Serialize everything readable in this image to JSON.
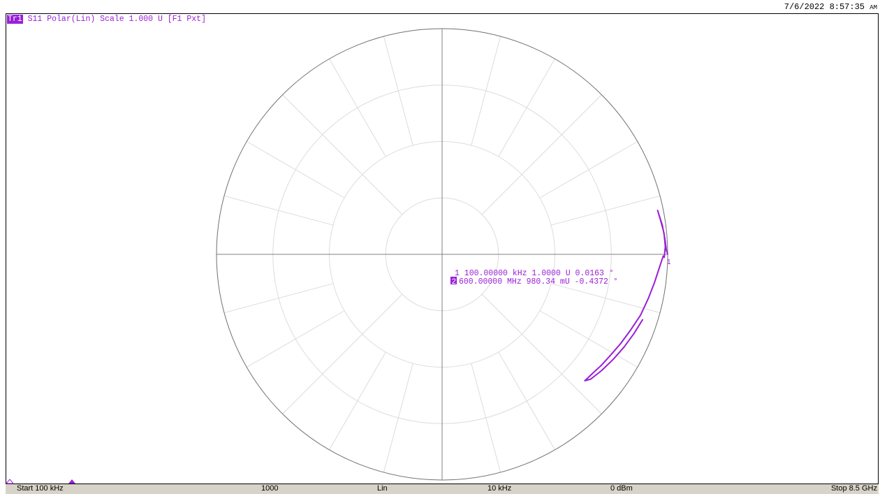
{
  "header": {
    "timestamp": "7/6/2022 8:57:35",
    "ampm": "AM"
  },
  "trace": {
    "badge": "Tr1",
    "label": "S11 Polar(Lin) Scale 1.000 U [F1 Pxt]",
    "color": "#9a1fd6"
  },
  "markers": {
    "m1": {
      "num": "1",
      "freq": "100.00000 kHz",
      "mag": "1.0000 U",
      "phase": "0.0163 °"
    },
    "m2": {
      "num": "2",
      "freq": "600.00000 MHz",
      "mag": "980.34 mU",
      "phase": "-0.4372 °"
    }
  },
  "statusbar": {
    "start": "Start 100 kHz",
    "points": "1000",
    "sweep": "Lin",
    "ifbw": "10 kHz",
    "power": "0 dBm",
    "stop": "Stop 8.5 GHz"
  },
  "chart_data": {
    "type": "polar",
    "scale": 1.0,
    "scale_unit": "U",
    "series": [
      {
        "values_polar": [
          [
            1.0,
            0.0163
          ],
          [
            0.994,
            1.2
          ],
          [
            0.99,
            4.0
          ],
          [
            0.985,
            7.5
          ],
          [
            0.975,
            11.5
          ],
          [
            0.98,
            9.0
          ],
          [
            0.988,
            5.5
          ],
          [
            0.99,
            2.0
          ],
          [
            0.985,
            -0.8
          ],
          [
            0.98034,
            -0.4372
          ],
          [
            0.965,
            -3.5
          ],
          [
            0.95,
            -7.5
          ],
          [
            0.935,
            -12.0
          ],
          [
            0.92,
            -17.0
          ],
          [
            0.9,
            -22.0
          ],
          [
            0.885,
            -26.5
          ],
          [
            0.87,
            -31.0
          ],
          [
            0.86,
            -35.0
          ],
          [
            0.85,
            -38.5
          ],
          [
            0.845,
            -41.5
          ],
          [
            0.86,
            -40.0
          ],
          [
            0.875,
            -36.0
          ],
          [
            0.89,
            -31.5
          ],
          [
            0.905,
            -27.0
          ],
          [
            0.92,
            -22.5
          ],
          [
            0.935,
            -18.0
          ]
        ]
      }
    ]
  }
}
